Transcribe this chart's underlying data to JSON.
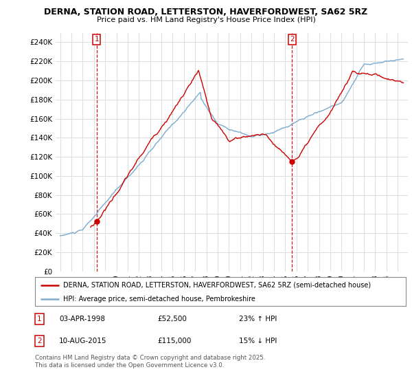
{
  "title": "DERNA, STATION ROAD, LETTERSTON, HAVERFORDWEST, SA62 5RZ",
  "subtitle": "Price paid vs. HM Land Registry's House Price Index (HPI)",
  "legend_label_red": "DERNA, STATION ROAD, LETTERSTON, HAVERFORDWEST, SA62 5RZ (semi-detached house)",
  "legend_label_blue": "HPI: Average price, semi-detached house, Pembrokeshire",
  "annotation1_date": "03-APR-1998",
  "annotation1_price": "£52,500",
  "annotation1_hpi": "23% ↑ HPI",
  "annotation2_date": "10-AUG-2015",
  "annotation2_price": "£115,000",
  "annotation2_hpi": "15% ↓ HPI",
  "footer": "Contains HM Land Registry data © Crown copyright and database right 2025.\nThis data is licensed under the Open Government Licence v3.0.",
  "ylim": [
    0,
    250000
  ],
  "yticks": [
    0,
    20000,
    40000,
    60000,
    80000,
    100000,
    120000,
    140000,
    160000,
    180000,
    200000,
    220000,
    240000
  ],
  "ytick_labels": [
    "£0",
    "£20K",
    "£40K",
    "£60K",
    "£80K",
    "£100K",
    "£120K",
    "£140K",
    "£160K",
    "£180K",
    "£200K",
    "£220K",
    "£240K"
  ],
  "color_red": "#cc0000",
  "color_blue": "#7aaacf",
  "sale1_year": 1998.25,
  "sale1_price": 52500,
  "sale2_year": 2015.6,
  "sale2_price": 115000,
  "background_color": "#ffffff",
  "grid_color": "#dddddd",
  "xlim_left": 1994.6,
  "xlim_right": 2025.9
}
